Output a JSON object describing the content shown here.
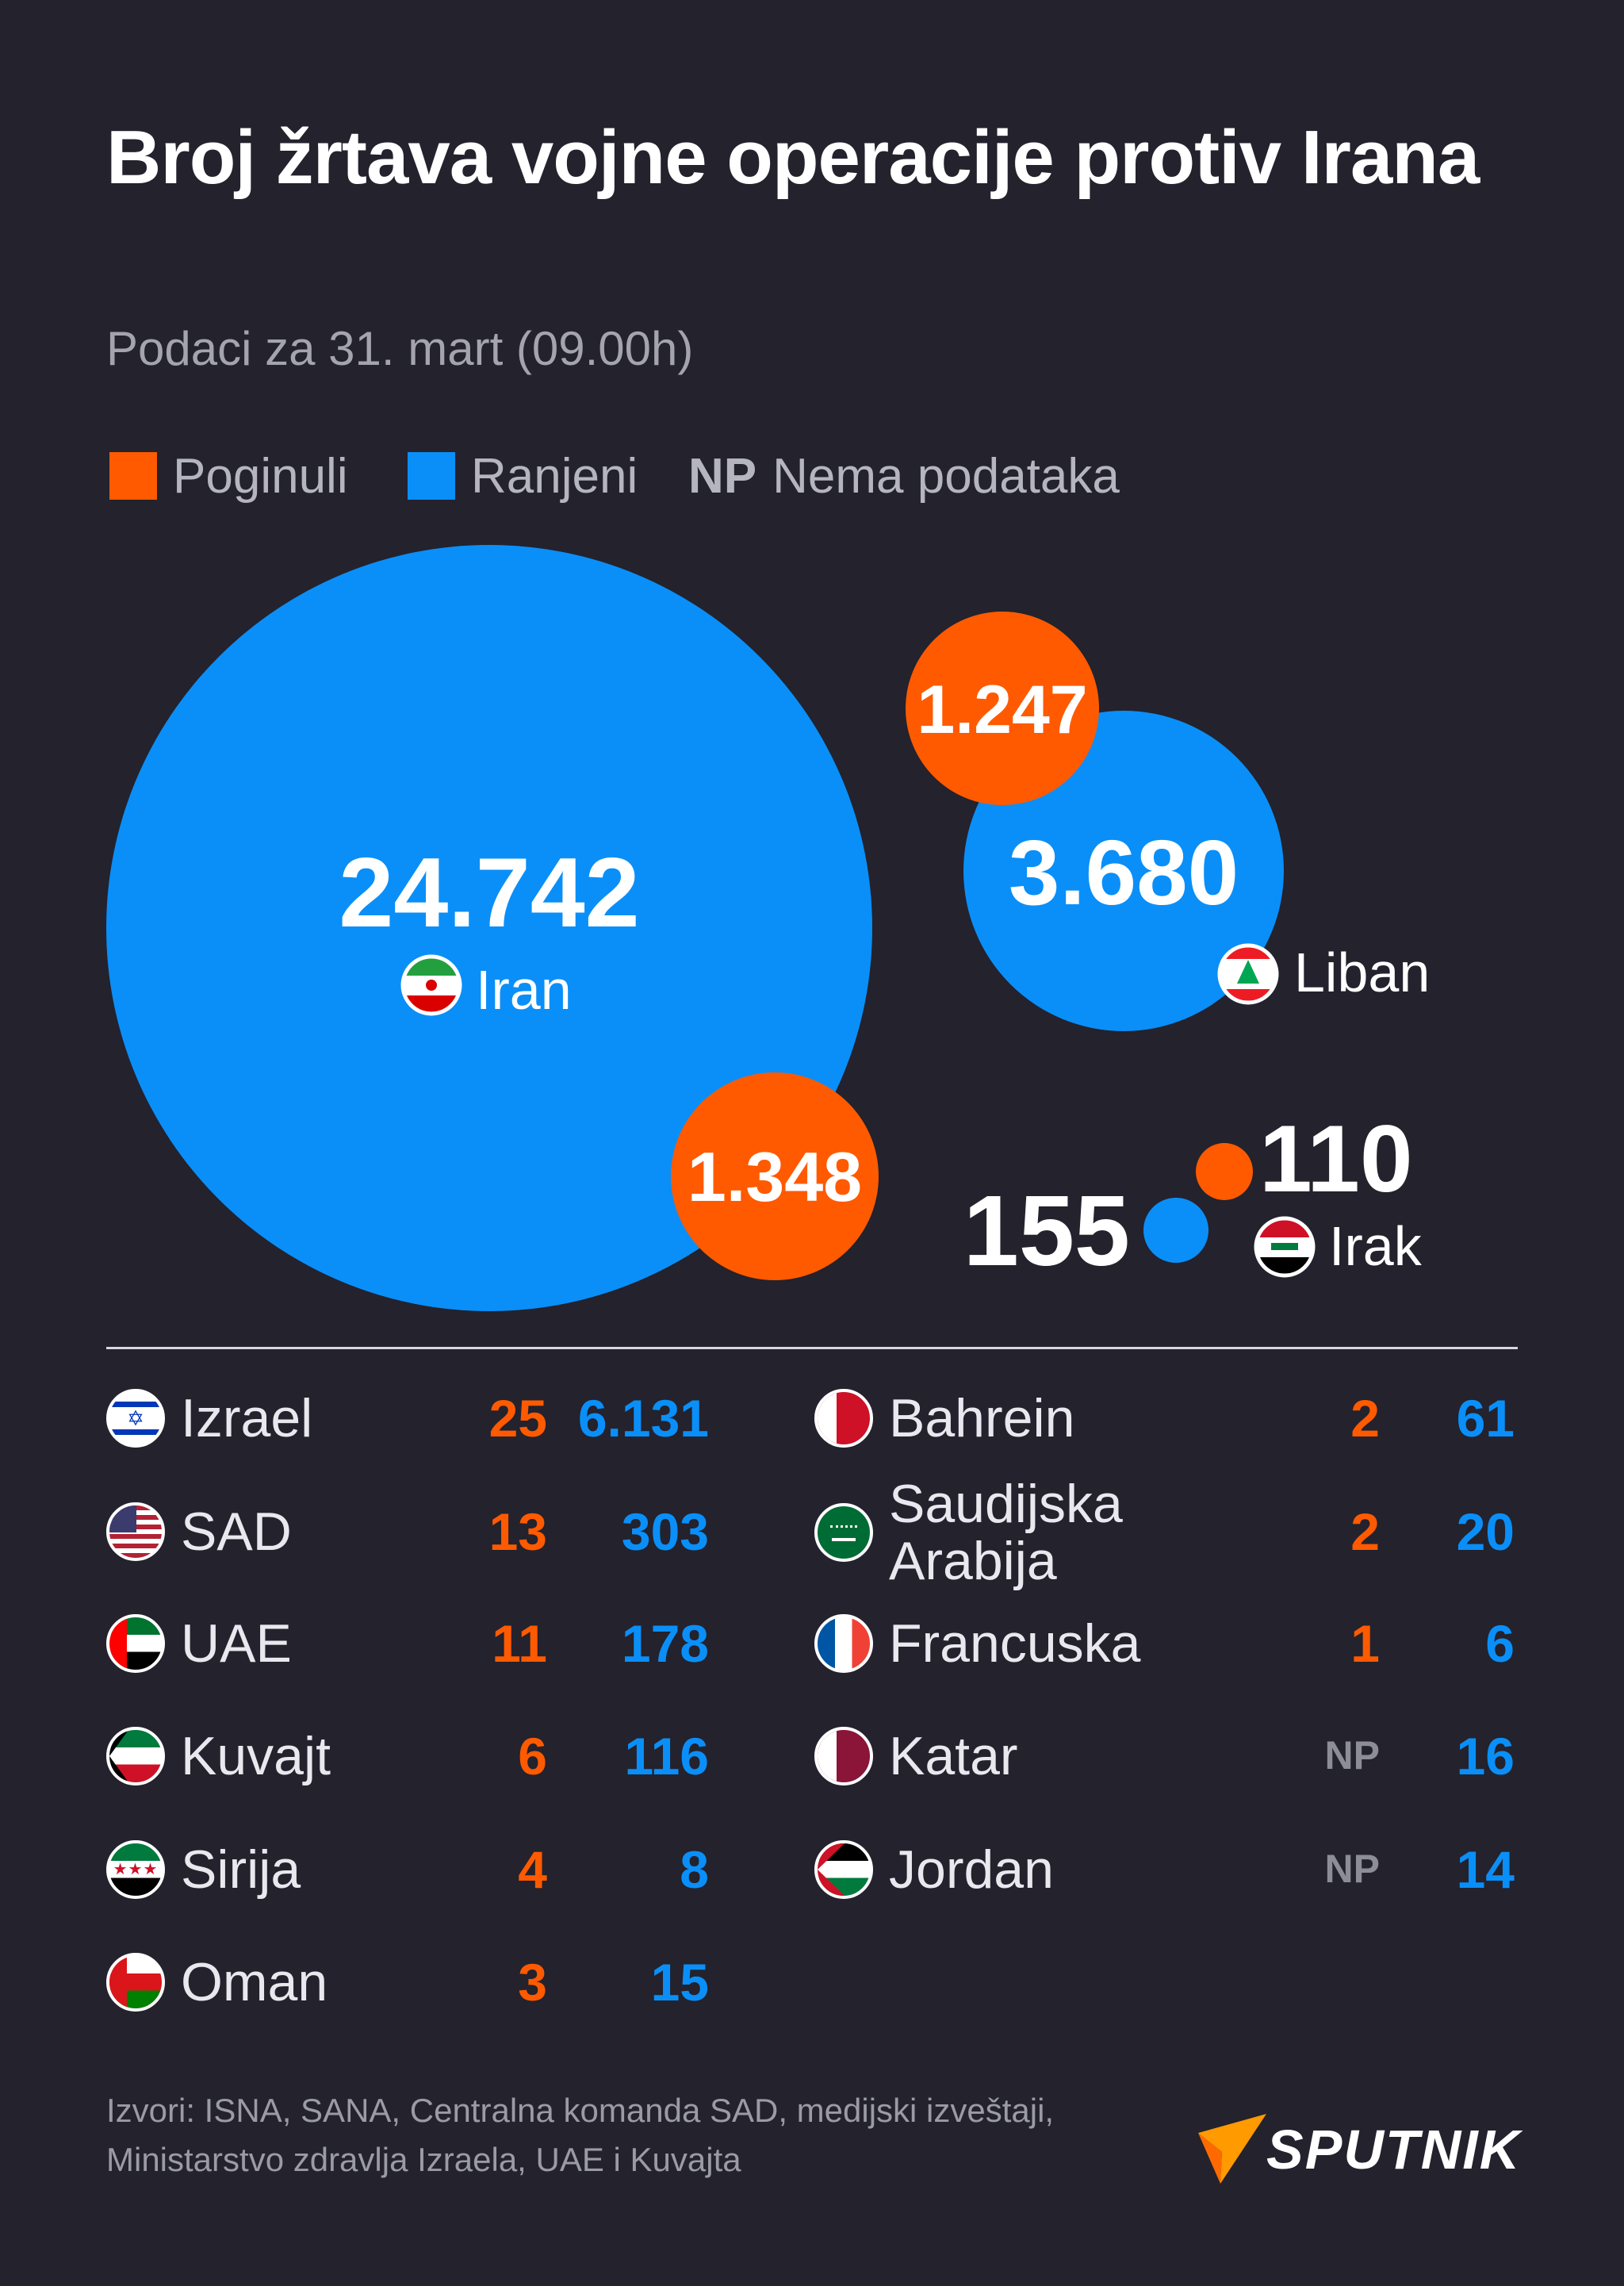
{
  "title": "Broj žrtava vojne operacije protiv Irana",
  "subtitle": "Podaci za 31. mart (09.00h)",
  "legend": {
    "killed": {
      "label": "Poginuli",
      "color": "#ff5a00"
    },
    "wounded": {
      "label": "Ranjeni",
      "color": "#0a8ff8"
    },
    "na": {
      "abbr": "NP",
      "label": "Nema podataka"
    }
  },
  "chart_data": {
    "type": "bubble",
    "title": "Broj žrtava vojne operacije protiv Irana",
    "subtitle": "Podaci za 31. mart (09.00h)",
    "series": [
      {
        "name": "Poginuli",
        "color": "#ff5a00"
      },
      {
        "name": "Ranjeni",
        "color": "#0a8ff8"
      }
    ],
    "bubbles": [
      {
        "country": "Iran",
        "killed": 1348,
        "wounded": 24742,
        "killed_label": "1.348",
        "wounded_label": "24.742"
      },
      {
        "country": "Liban",
        "killed": 1247,
        "wounded": 3680,
        "killed_label": "1.247",
        "wounded_label": "3.680"
      },
      {
        "country": "Irak",
        "killed": 110,
        "wounded": 155,
        "killed_label": "110",
        "wounded_label": "155"
      }
    ],
    "table": [
      {
        "country": "Izrael",
        "killed": "25",
        "wounded": "6.131"
      },
      {
        "country": "SAD",
        "killed": "13",
        "wounded": "303"
      },
      {
        "country": "UAE",
        "killed": "11",
        "wounded": "178"
      },
      {
        "country": "Kuvajt",
        "killed": "6",
        "wounded": "116"
      },
      {
        "country": "Sirija",
        "killed": "4",
        "wounded": "8"
      },
      {
        "country": "Oman",
        "killed": "3",
        "wounded": "15"
      },
      {
        "country": "Bahrein",
        "killed": "2",
        "wounded": "61"
      },
      {
        "country": "Saudijska Arabija",
        "killed": "2",
        "wounded": "20"
      },
      {
        "country": "Francuska",
        "killed": "1",
        "wounded": "6"
      },
      {
        "country": "Katar",
        "killed": "NP",
        "wounded": "16"
      },
      {
        "country": "Jordan",
        "killed": "NP",
        "wounded": "14"
      }
    ]
  },
  "sources": {
    "line1": "Izvori: ISNA, SANA, Centralna komanda SAD, medijski izveštaji,",
    "line2": "Ministarstvo zdravlja Izraela, UAE i Kuvajta"
  },
  "brand": "SPUTNIK"
}
